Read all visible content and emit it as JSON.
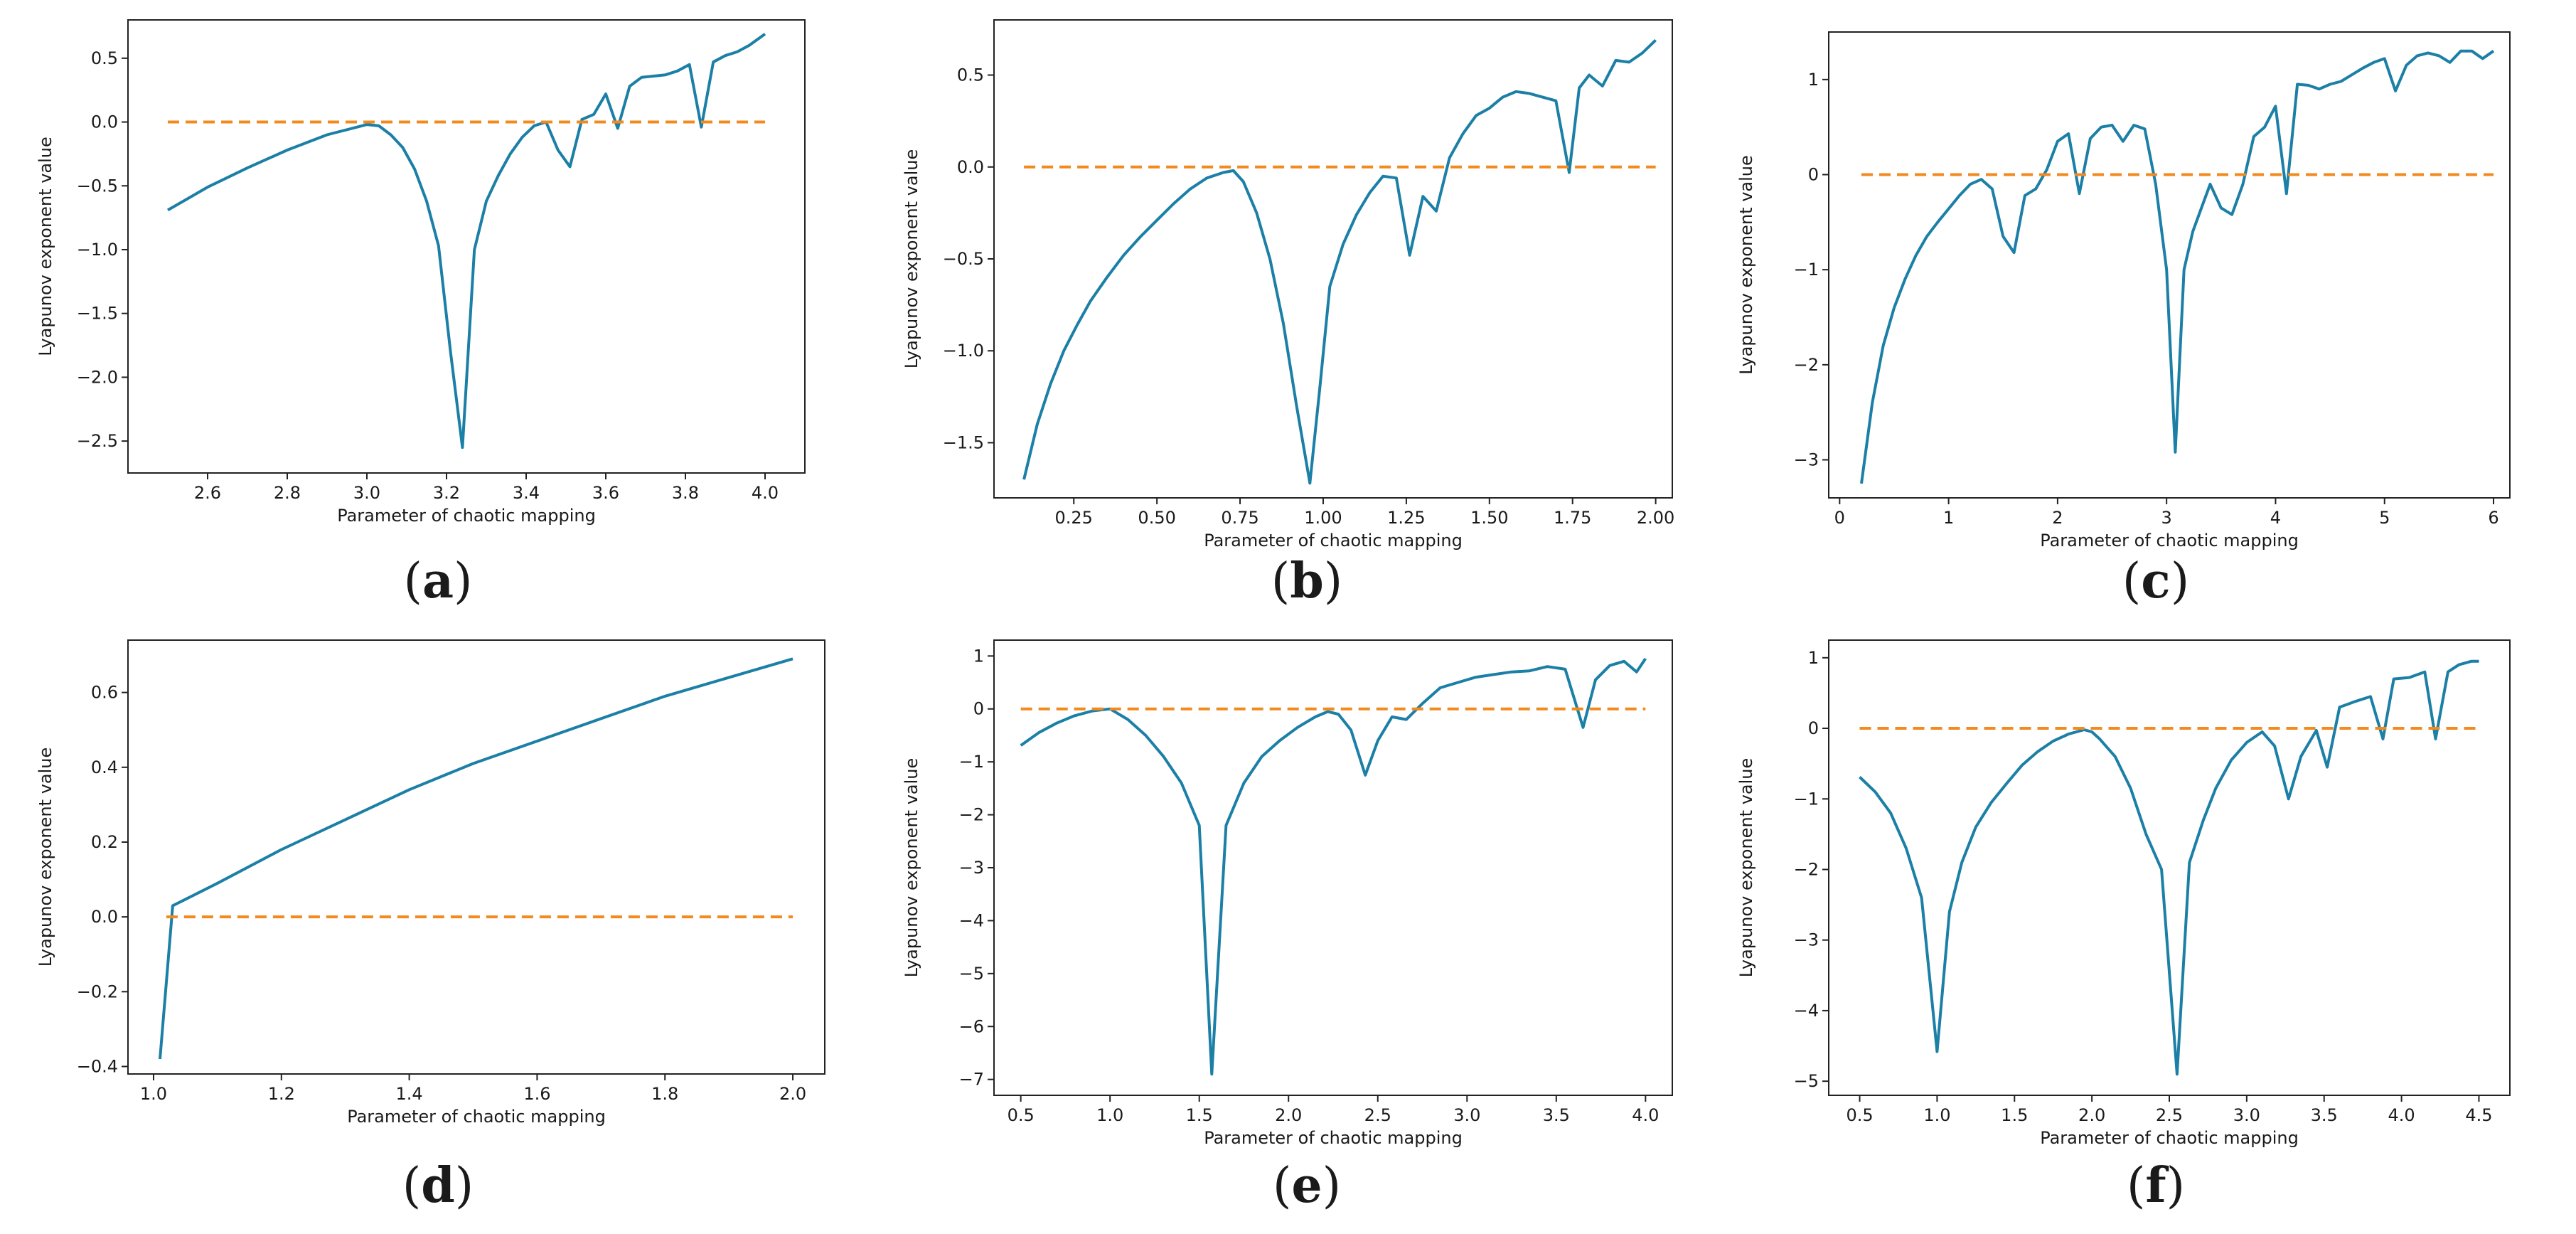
{
  "chart_data": [
    {
      "type": "line",
      "caption": "a",
      "xlabel": "Parameter of chaotic mapping",
      "ylabel": "Lyapunov exponent value",
      "xlim": [
        2.4,
        4.1
      ],
      "ylim": [
        -2.75,
        0.8
      ],
      "xticks": [
        2.6,
        2.8,
        3.0,
        3.2,
        3.4,
        3.6,
        3.8,
        4.0
      ],
      "xtick_labels": [
        "2.6",
        "2.8",
        "3.0",
        "3.2",
        "3.4",
        "3.6",
        "3.8",
        "4.0"
      ],
      "yticks": [
        -2.5,
        -2.0,
        -1.5,
        -1.0,
        -0.5,
        0.0,
        0.5
      ],
      "ytick_labels": [
        "−2.5",
        "−2.0",
        "−1.5",
        "−1.0",
        "−0.5",
        "0.0",
        "0.5"
      ],
      "series": [
        {
          "name": "Lyapunov exponent",
          "color": "#1b7fa6",
          "x": [
            2.5,
            2.6,
            2.7,
            2.8,
            2.9,
            3.0,
            3.03,
            3.06,
            3.09,
            3.12,
            3.15,
            3.18,
            3.21,
            3.24,
            3.27,
            3.3,
            3.33,
            3.36,
            3.39,
            3.42,
            3.45,
            3.48,
            3.51,
            3.54,
            3.57,
            3.6,
            3.63,
            3.66,
            3.69,
            3.72,
            3.75,
            3.78,
            3.81,
            3.84,
            3.87,
            3.9,
            3.93,
            3.96,
            4.0
          ],
          "y": [
            -0.69,
            -0.51,
            -0.36,
            -0.22,
            -0.1,
            -0.02,
            -0.03,
            -0.1,
            -0.2,
            -0.37,
            -0.62,
            -0.97,
            -1.8,
            -2.55,
            -1.0,
            -0.62,
            -0.42,
            -0.25,
            -0.12,
            -0.03,
            0.0,
            -0.22,
            -0.35,
            0.02,
            0.06,
            0.22,
            -0.05,
            0.28,
            0.35,
            0.36,
            0.37,
            0.4,
            0.45,
            -0.04,
            0.47,
            0.52,
            0.55,
            0.6,
            0.69
          ]
        },
        {
          "name": "Zero reference",
          "color": "#f28a1e",
          "style": "dashed",
          "x": [
            2.5,
            4.0
          ],
          "y": [
            0,
            0
          ]
        }
      ]
    },
    {
      "type": "line",
      "caption": "b",
      "xlabel": "Parameter of chaotic mapping",
      "ylabel": "Lyapunov exponent value",
      "xlim": [
        0.01,
        2.05
      ],
      "ylim": [
        -1.8,
        0.8
      ],
      "xticks": [
        0.25,
        0.5,
        0.75,
        1.0,
        1.25,
        1.5,
        1.75,
        2.0
      ],
      "xtick_labels": [
        "0.25",
        "0.50",
        "0.75",
        "1.00",
        "1.25",
        "1.50",
        "1.75",
        "2.00"
      ],
      "yticks": [
        -1.5,
        -1.0,
        -0.5,
        0.0,
        0.5
      ],
      "ytick_labels": [
        "−1.5",
        "−1.0",
        "−0.5",
        "0.0",
        "0.5"
      ],
      "series": [
        {
          "name": "Lyapunov exponent",
          "color": "#1b7fa6",
          "x": [
            0.1,
            0.14,
            0.18,
            0.22,
            0.26,
            0.3,
            0.35,
            0.4,
            0.45,
            0.5,
            0.55,
            0.6,
            0.65,
            0.7,
            0.73,
            0.76,
            0.8,
            0.84,
            0.88,
            0.92,
            0.96,
            0.99,
            1.02,
            1.06,
            1.1,
            1.14,
            1.18,
            1.22,
            1.26,
            1.3,
            1.34,
            1.38,
            1.42,
            1.46,
            1.5,
            1.54,
            1.58,
            1.62,
            1.66,
            1.7,
            1.74,
            1.77,
            1.8,
            1.84,
            1.88,
            1.92,
            1.96,
            2.0
          ],
          "y": [
            -1.7,
            -1.4,
            -1.18,
            -1.0,
            -0.86,
            -0.73,
            -0.6,
            -0.48,
            -0.38,
            -0.29,
            -0.2,
            -0.12,
            -0.06,
            -0.03,
            -0.02,
            -0.08,
            -0.25,
            -0.5,
            -0.85,
            -1.3,
            -1.72,
            -1.2,
            -0.65,
            -0.42,
            -0.26,
            -0.14,
            -0.05,
            -0.06,
            -0.48,
            -0.16,
            -0.24,
            0.05,
            0.18,
            0.28,
            0.32,
            0.38,
            0.41,
            0.4,
            0.38,
            0.36,
            -0.03,
            0.43,
            0.5,
            0.44,
            0.58,
            0.57,
            0.62,
            0.69
          ]
        },
        {
          "name": "Zero reference",
          "color": "#f28a1e",
          "style": "dashed",
          "x": [
            0.1,
            2.0
          ],
          "y": [
            0,
            0
          ]
        }
      ]
    },
    {
      "type": "line",
      "caption": "c",
      "xlabel": "Parameter of chaotic mapping",
      "ylabel": "Lyapunov exponent value",
      "xlim": [
        -0.1,
        6.15
      ],
      "ylim": [
        -3.4,
        1.5
      ],
      "xticks": [
        0,
        1,
        2,
        3,
        4,
        5,
        6
      ],
      "xtick_labels": [
        "0",
        "1",
        "2",
        "3",
        "4",
        "5",
        "6"
      ],
      "yticks": [
        -3,
        -2,
        -1,
        0,
        1
      ],
      "ytick_labels": [
        "−3",
        "−2",
        "−1",
        "0",
        "1"
      ],
      "series": [
        {
          "name": "Lyapunov exponent",
          "color": "#1b7fa6",
          "x": [
            0.2,
            0.3,
            0.4,
            0.5,
            0.6,
            0.7,
            0.8,
            0.9,
            1.0,
            1.1,
            1.2,
            1.3,
            1.4,
            1.5,
            1.6,
            1.7,
            1.8,
            1.9,
            2.0,
            2.1,
            2.2,
            2.3,
            2.4,
            2.5,
            2.6,
            2.7,
            2.8,
            2.9,
            3.0,
            3.08,
            3.16,
            3.24,
            3.32,
            3.4,
            3.5,
            3.6,
            3.7,
            3.8,
            3.9,
            4.0,
            4.1,
            4.2,
            4.3,
            4.4,
            4.5,
            4.6,
            4.7,
            4.8,
            4.9,
            5.0,
            5.1,
            5.2,
            5.3,
            5.4,
            5.5,
            5.6,
            5.7,
            5.8,
            5.9,
            6.0
          ],
          "y": [
            -3.25,
            -2.4,
            -1.8,
            -1.4,
            -1.1,
            -0.85,
            -0.65,
            -0.5,
            -0.36,
            -0.22,
            -0.1,
            -0.05,
            -0.15,
            -0.65,
            -0.82,
            -0.22,
            -0.15,
            0.05,
            0.35,
            0.43,
            -0.2,
            0.38,
            0.5,
            0.52,
            0.35,
            0.52,
            0.48,
            -0.1,
            -1.0,
            -2.92,
            -1.0,
            -0.6,
            -0.35,
            -0.1,
            -0.35,
            -0.42,
            -0.1,
            0.4,
            0.5,
            0.72,
            -0.2,
            0.95,
            0.94,
            0.9,
            0.95,
            0.98,
            1.05,
            1.12,
            1.18,
            1.22,
            0.88,
            1.15,
            1.25,
            1.28,
            1.25,
            1.18,
            1.3,
            1.3,
            1.22,
            1.3
          ]
        },
        {
          "name": "Zero reference",
          "color": "#f28a1e",
          "style": "dashed",
          "x": [
            0.2,
            6.0
          ],
          "y": [
            0,
            0
          ]
        }
      ]
    },
    {
      "type": "line",
      "caption": "d",
      "xlabel": "Parameter of chaotic mapping",
      "ylabel": "Lyapunov exponent value",
      "xlim": [
        0.96,
        2.05
      ],
      "ylim": [
        -0.42,
        0.74
      ],
      "xticks": [
        1.0,
        1.2,
        1.4,
        1.6,
        1.8,
        2.0
      ],
      "xtick_labels": [
        "1.0",
        "1.2",
        "1.4",
        "1.6",
        "1.8",
        "2.0"
      ],
      "yticks": [
        -0.4,
        -0.2,
        0.0,
        0.2,
        0.4,
        0.6
      ],
      "ytick_labels": [
        "−0.4",
        "−0.2",
        "0.0",
        "0.2",
        "0.4",
        "0.6"
      ],
      "series": [
        {
          "name": "Lyapunov exponent",
          "color": "#1b7fa6",
          "x": [
            1.01,
            1.03,
            1.1,
            1.2,
            1.3,
            1.4,
            1.5,
            1.6,
            1.7,
            1.8,
            1.9,
            2.0
          ],
          "y": [
            -0.38,
            0.03,
            0.09,
            0.18,
            0.26,
            0.34,
            0.41,
            0.47,
            0.53,
            0.59,
            0.64,
            0.69
          ]
        },
        {
          "name": "Zero reference",
          "color": "#f28a1e",
          "style": "dashed",
          "x": [
            1.02,
            2.0
          ],
          "y": [
            0,
            0
          ]
        }
      ]
    },
    {
      "type": "line",
      "caption": "e",
      "xlabel": "Parameter of chaotic mapping",
      "ylabel": "Lyapunov exponent value",
      "xlim": [
        0.35,
        4.15
      ],
      "ylim": [
        -7.3,
        1.3
      ],
      "xticks": [
        0.5,
        1.0,
        1.5,
        2.0,
        2.5,
        3.0,
        3.5,
        4.0
      ],
      "xtick_labels": [
        "0.5",
        "1.0",
        "1.5",
        "2.0",
        "2.5",
        "3.0",
        "3.5",
        "4.0"
      ],
      "yticks": [
        -7,
        -6,
        -5,
        -4,
        -3,
        -2,
        -1,
        0,
        1
      ],
      "ytick_labels": [
        "−7",
        "−6",
        "−5",
        "−4",
        "−3",
        "−2",
        "−1",
        "0",
        "1"
      ],
      "series": [
        {
          "name": "Lyapunov exponent",
          "color": "#1b7fa6",
          "x": [
            0.5,
            0.6,
            0.7,
            0.8,
            0.9,
            1.0,
            1.1,
            1.2,
            1.3,
            1.4,
            1.5,
            1.57,
            1.65,
            1.75,
            1.85,
            1.95,
            2.05,
            2.15,
            2.22,
            2.28,
            2.35,
            2.43,
            2.5,
            2.58,
            2.66,
            2.75,
            2.85,
            2.95,
            3.05,
            3.15,
            3.25,
            3.35,
            3.45,
            3.55,
            3.65,
            3.72,
            3.8,
            3.88,
            3.95,
            4.0
          ],
          "y": [
            -0.69,
            -0.45,
            -0.27,
            -0.13,
            -0.04,
            0.0,
            -0.2,
            -0.5,
            -0.9,
            -1.4,
            -2.2,
            -6.9,
            -2.2,
            -1.4,
            -0.9,
            -0.6,
            -0.35,
            -0.15,
            -0.05,
            -0.1,
            -0.4,
            -1.25,
            -0.6,
            -0.15,
            -0.2,
            0.1,
            0.4,
            0.5,
            0.6,
            0.65,
            0.7,
            0.72,
            0.8,
            0.75,
            -0.35,
            0.55,
            0.82,
            0.9,
            0.7,
            0.95
          ]
        },
        {
          "name": "Zero reference",
          "color": "#f28a1e",
          "style": "dashed",
          "x": [
            0.5,
            4.0
          ],
          "y": [
            0,
            0
          ]
        }
      ]
    },
    {
      "type": "line",
      "caption": "f",
      "xlabel": "Parameter of chaotic mapping",
      "ylabel": "Lyapunov exponent value",
      "xlim": [
        0.3,
        4.7
      ],
      "ylim": [
        -5.2,
        1.25
      ],
      "xticks": [
        0.5,
        1.0,
        1.5,
        2.0,
        2.5,
        3.0,
        3.5,
        4.0,
        4.5
      ],
      "xtick_labels": [
        "0.5",
        "1.0",
        "1.5",
        "2.0",
        "2.5",
        "3.0",
        "3.5",
        "4.0",
        "4.5"
      ],
      "yticks": [
        -5,
        -4,
        -3,
        -2,
        -1,
        0,
        1
      ],
      "ytick_labels": [
        "−5",
        "−4",
        "−3",
        "−2",
        "−1",
        "0",
        "1"
      ],
      "series": [
        {
          "name": "Lyapunov exponent",
          "color": "#1b7fa6",
          "x": [
            0.5,
            0.6,
            0.7,
            0.8,
            0.9,
            1.0,
            1.08,
            1.16,
            1.25,
            1.35,
            1.45,
            1.55,
            1.65,
            1.75,
            1.85,
            1.95,
            2.0,
            2.05,
            2.15,
            2.25,
            2.35,
            2.45,
            2.55,
            2.63,
            2.72,
            2.8,
            2.9,
            3.0,
            3.1,
            3.18,
            3.27,
            3.35,
            3.45,
            3.52,
            3.6,
            3.7,
            3.8,
            3.88,
            3.95,
            4.05,
            4.15,
            4.22,
            4.3,
            4.37,
            4.45,
            4.5
          ],
          "y": [
            -0.69,
            -0.9,
            -1.2,
            -1.7,
            -2.4,
            -4.58,
            -2.6,
            -1.9,
            -1.4,
            -1.05,
            -0.78,
            -0.52,
            -0.33,
            -0.18,
            -0.08,
            -0.02,
            -0.05,
            -0.15,
            -0.4,
            -0.85,
            -1.5,
            -2.0,
            -4.9,
            -1.9,
            -1.3,
            -0.85,
            -0.45,
            -0.2,
            -0.05,
            -0.25,
            -1.0,
            -0.4,
            -0.03,
            -0.55,
            0.3,
            0.38,
            0.45,
            -0.15,
            0.7,
            0.72,
            0.8,
            -0.15,
            0.8,
            0.9,
            0.95,
            0.95
          ]
        },
        {
          "name": "Zero reference",
          "color": "#f28a1e",
          "style": "dashed",
          "x": [
            0.5,
            4.5
          ],
          "y": [
            0,
            0
          ]
        }
      ]
    }
  ]
}
